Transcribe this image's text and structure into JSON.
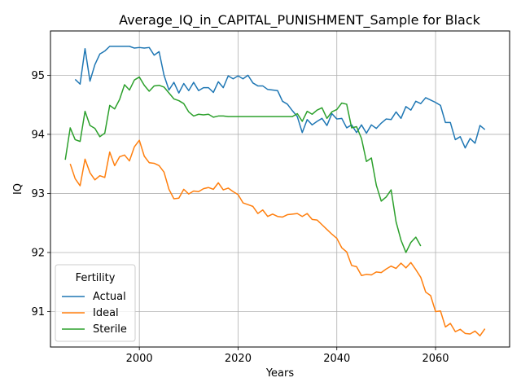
{
  "chart_data": {
    "type": "line",
    "title": "Average_IQ_in_CAPITAL_PUNISHMENT_Sample for Black",
    "xlabel": "Years",
    "ylabel": "IQ",
    "xlim": [
      1982,
      2075
    ],
    "ylim": [
      90.4,
      95.75
    ],
    "xticks": [
      2000,
      2020,
      2040,
      2060
    ],
    "yticks": [
      91,
      92,
      93,
      94,
      95
    ],
    "grid": true,
    "legend": {
      "title": "Fertility",
      "placement": "lower-left"
    },
    "series": [
      {
        "name": "Actual",
        "color": "#1f77b4",
        "points": [
          [
            1987,
            94.93
          ],
          [
            1988,
            94.85
          ],
          [
            1989,
            95.45
          ],
          [
            1990,
            94.9
          ],
          [
            1991,
            95.18
          ],
          [
            1992,
            95.36
          ],
          [
            1993,
            95.41
          ],
          [
            1994,
            95.49
          ],
          [
            1995,
            95.49
          ],
          [
            1996,
            95.49
          ],
          [
            1997,
            95.49
          ],
          [
            1998,
            95.49
          ],
          [
            1999,
            95.46
          ],
          [
            2000,
            95.47
          ],
          [
            2001,
            95.46
          ],
          [
            2002,
            95.47
          ],
          [
            2003,
            95.34
          ],
          [
            2004,
            95.4
          ],
          [
            2005,
            95.0
          ],
          [
            2006,
            94.75
          ],
          [
            2007,
            94.88
          ],
          [
            2008,
            94.7
          ],
          [
            2009,
            94.86
          ],
          [
            2010,
            94.74
          ],
          [
            2011,
            94.88
          ],
          [
            2012,
            94.74
          ],
          [
            2013,
            94.79
          ],
          [
            2014,
            94.79
          ],
          [
            2015,
            94.71
          ],
          [
            2016,
            94.89
          ],
          [
            2017,
            94.79
          ],
          [
            2018,
            94.99
          ],
          [
            2019,
            94.94
          ],
          [
            2020,
            94.99
          ],
          [
            2021,
            94.94
          ],
          [
            2022,
            95.0
          ],
          [
            2023,
            94.87
          ],
          [
            2024,
            94.82
          ],
          [
            2025,
            94.82
          ],
          [
            2026,
            94.76
          ],
          [
            2027,
            94.75
          ],
          [
            2028,
            94.74
          ],
          [
            2029,
            94.56
          ],
          [
            2030,
            94.51
          ],
          [
            2031,
            94.4
          ],
          [
            2032,
            94.3
          ],
          [
            2033,
            94.03
          ],
          [
            2034,
            94.25
          ],
          [
            2035,
            94.16
          ],
          [
            2036,
            94.22
          ],
          [
            2037,
            94.27
          ],
          [
            2038,
            94.15
          ],
          [
            2039,
            94.35
          ],
          [
            2040,
            94.26
          ],
          [
            2041,
            94.27
          ],
          [
            2042,
            94.11
          ],
          [
            2043,
            94.16
          ],
          [
            2044,
            94.03
          ],
          [
            2045,
            94.16
          ],
          [
            2046,
            94.02
          ],
          [
            2047,
            94.16
          ],
          [
            2048,
            94.1
          ],
          [
            2049,
            94.19
          ],
          [
            2050,
            94.26
          ],
          [
            2051,
            94.25
          ],
          [
            2052,
            94.38
          ],
          [
            2053,
            94.27
          ],
          [
            2054,
            94.47
          ],
          [
            2055,
            94.41
          ],
          [
            2056,
            94.56
          ],
          [
            2057,
            94.52
          ],
          [
            2058,
            94.62
          ],
          [
            2059,
            94.58
          ],
          [
            2060,
            94.54
          ],
          [
            2061,
            94.49
          ],
          [
            2062,
            94.2
          ],
          [
            2063,
            94.2
          ],
          [
            2064,
            93.91
          ],
          [
            2065,
            93.96
          ],
          [
            2066,
            93.77
          ],
          [
            2067,
            93.93
          ],
          [
            2068,
            93.85
          ],
          [
            2069,
            94.15
          ],
          [
            2070,
            94.08
          ]
        ]
      },
      {
        "name": "Ideal",
        "color": "#ff7f0e",
        "points": [
          [
            1986,
            93.5
          ],
          [
            1987,
            93.25
          ],
          [
            1988,
            93.13
          ],
          [
            1989,
            93.58
          ],
          [
            1990,
            93.35
          ],
          [
            1991,
            93.23
          ],
          [
            1992,
            93.3
          ],
          [
            1993,
            93.27
          ],
          [
            1994,
            93.7
          ],
          [
            1995,
            93.47
          ],
          [
            1996,
            93.62
          ],
          [
            1997,
            93.65
          ],
          [
            1998,
            93.55
          ],
          [
            1999,
            93.79
          ],
          [
            2000,
            93.9
          ],
          [
            2001,
            93.63
          ],
          [
            2002,
            93.52
          ],
          [
            2003,
            93.51
          ],
          [
            2004,
            93.47
          ],
          [
            2005,
            93.36
          ],
          [
            2006,
            93.07
          ],
          [
            2007,
            92.91
          ],
          [
            2008,
            92.92
          ],
          [
            2009,
            93.07
          ],
          [
            2010,
            92.99
          ],
          [
            2011,
            93.04
          ],
          [
            2012,
            93.03
          ],
          [
            2013,
            93.08
          ],
          [
            2014,
            93.1
          ],
          [
            2015,
            93.07
          ],
          [
            2016,
            93.18
          ],
          [
            2017,
            93.06
          ],
          [
            2018,
            93.09
          ],
          [
            2019,
            93.03
          ],
          [
            2020,
            92.98
          ],
          [
            2021,
            92.84
          ],
          [
            2022,
            92.81
          ],
          [
            2023,
            92.78
          ],
          [
            2024,
            92.66
          ],
          [
            2025,
            92.72
          ],
          [
            2026,
            92.61
          ],
          [
            2027,
            92.65
          ],
          [
            2028,
            92.61
          ],
          [
            2029,
            92.6
          ],
          [
            2030,
            92.64
          ],
          [
            2031,
            92.65
          ],
          [
            2032,
            92.66
          ],
          [
            2033,
            92.61
          ],
          [
            2034,
            92.66
          ],
          [
            2035,
            92.56
          ],
          [
            2036,
            92.55
          ],
          [
            2037,
            92.47
          ],
          [
            2038,
            92.39
          ],
          [
            2039,
            92.31
          ],
          [
            2040,
            92.24
          ],
          [
            2041,
            92.08
          ],
          [
            2042,
            92.01
          ],
          [
            2043,
            91.78
          ],
          [
            2044,
            91.76
          ],
          [
            2045,
            91.61
          ],
          [
            2046,
            91.63
          ],
          [
            2047,
            91.62
          ],
          [
            2048,
            91.67
          ],
          [
            2049,
            91.66
          ],
          [
            2050,
            91.72
          ],
          [
            2051,
            91.77
          ],
          [
            2052,
            91.73
          ],
          [
            2053,
            91.82
          ],
          [
            2054,
            91.74
          ],
          [
            2055,
            91.83
          ],
          [
            2056,
            91.71
          ],
          [
            2057,
            91.58
          ],
          [
            2058,
            91.33
          ],
          [
            2059,
            91.27
          ],
          [
            2060,
            91.0
          ],
          [
            2061,
            91.01
          ],
          [
            2062,
            90.74
          ],
          [
            2063,
            90.8
          ],
          [
            2064,
            90.66
          ],
          [
            2065,
            90.7
          ],
          [
            2066,
            90.63
          ],
          [
            2067,
            90.62
          ],
          [
            2068,
            90.67
          ],
          [
            2069,
            90.59
          ],
          [
            2070,
            90.71
          ]
        ]
      },
      {
        "name": "Sterile",
        "color": "#2ca02c",
        "points": [
          [
            1985,
            93.57
          ],
          [
            1986,
            94.11
          ],
          [
            1987,
            93.91
          ],
          [
            1988,
            93.88
          ],
          [
            1989,
            94.39
          ],
          [
            1990,
            94.15
          ],
          [
            1991,
            94.1
          ],
          [
            1992,
            93.96
          ],
          [
            1993,
            94.02
          ],
          [
            1994,
            94.49
          ],
          [
            1995,
            94.43
          ],
          [
            1996,
            94.59
          ],
          [
            1997,
            94.84
          ],
          [
            1998,
            94.75
          ],
          [
            1999,
            94.92
          ],
          [
            2000,
            94.97
          ],
          [
            2001,
            94.83
          ],
          [
            2002,
            94.73
          ],
          [
            2003,
            94.82
          ],
          [
            2004,
            94.83
          ],
          [
            2005,
            94.8
          ],
          [
            2006,
            94.7
          ],
          [
            2007,
            94.6
          ],
          [
            2008,
            94.57
          ],
          [
            2009,
            94.52
          ],
          [
            2010,
            94.38
          ],
          [
            2011,
            94.31
          ],
          [
            2012,
            94.34
          ],
          [
            2013,
            94.33
          ],
          [
            2014,
            94.34
          ],
          [
            2015,
            94.29
          ],
          [
            2016,
            94.31
          ],
          [
            2017,
            94.31
          ],
          [
            2018,
            94.3
          ],
          [
            2019,
            94.3
          ],
          [
            2020,
            94.3
          ],
          [
            2021,
            94.3
          ],
          [
            2022,
            94.3
          ],
          [
            2023,
            94.3
          ],
          [
            2024,
            94.3
          ],
          [
            2025,
            94.3
          ],
          [
            2026,
            94.3
          ],
          [
            2027,
            94.3
          ],
          [
            2028,
            94.3
          ],
          [
            2029,
            94.3
          ],
          [
            2030,
            94.3
          ],
          [
            2031,
            94.3
          ],
          [
            2032,
            94.35
          ],
          [
            2033,
            94.22
          ],
          [
            2034,
            94.39
          ],
          [
            2035,
            94.34
          ],
          [
            2036,
            94.41
          ],
          [
            2037,
            94.45
          ],
          [
            2038,
            94.27
          ],
          [
            2039,
            94.38
          ],
          [
            2040,
            94.42
          ],
          [
            2041,
            94.53
          ],
          [
            2042,
            94.51
          ],
          [
            2043,
            94.11
          ],
          [
            2044,
            94.13
          ],
          [
            2045,
            93.93
          ],
          [
            2046,
            93.54
          ],
          [
            2047,
            93.6
          ],
          [
            2048,
            93.14
          ],
          [
            2049,
            92.87
          ],
          [
            2050,
            92.94
          ],
          [
            2051,
            93.06
          ],
          [
            2052,
            92.52
          ],
          [
            2053,
            92.21
          ],
          [
            2054,
            92.0
          ],
          [
            2055,
            92.17
          ],
          [
            2056,
            92.26
          ],
          [
            2057,
            92.11
          ]
        ]
      }
    ]
  }
}
